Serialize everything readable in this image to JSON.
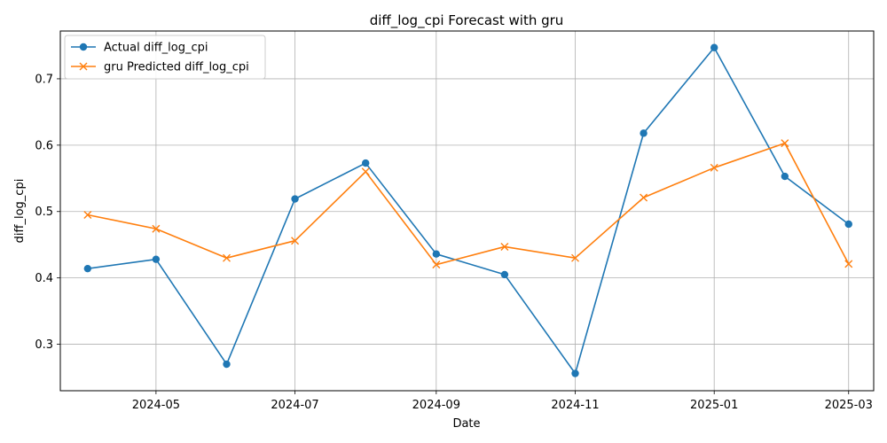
{
  "chart_data": {
    "type": "line",
    "title": "diff_log_cpi Forecast with gru",
    "xlabel": "Date",
    "ylabel": "diff_log_cpi",
    "x": [
      "2024-04-01",
      "2024-05-01",
      "2024-06-01",
      "2024-07-01",
      "2024-08-01",
      "2024-09-01",
      "2024-10-01",
      "2024-11-01",
      "2024-12-01",
      "2025-01-01",
      "2025-02-01",
      "2025-03-01"
    ],
    "x_ticks": [
      "2024-05",
      "2024-07",
      "2024-09",
      "2024-11",
      "2025-01",
      "2025-03"
    ],
    "ylim": [
      0.23,
      0.772
    ],
    "y_ticks": [
      "0.3",
      "0.4",
      "0.5",
      "0.6",
      "0.7"
    ],
    "grid": true,
    "legend_position": "upper-left",
    "series": [
      {
        "name": "Actual diff_log_cpi",
        "color": "#1f77b4",
        "marker": "circle",
        "values": [
          0.414,
          0.428,
          0.27,
          0.519,
          0.573,
          0.436,
          0.405,
          0.256,
          0.618,
          0.747,
          0.553,
          0.481
        ]
      },
      {
        "name": "gru Predicted diff_log_cpi",
        "color": "#ff7f0e",
        "marker": "x",
        "values": [
          0.495,
          0.474,
          0.43,
          0.456,
          0.56,
          0.42,
          0.447,
          0.43,
          0.521,
          0.566,
          0.603,
          0.421
        ]
      }
    ]
  }
}
